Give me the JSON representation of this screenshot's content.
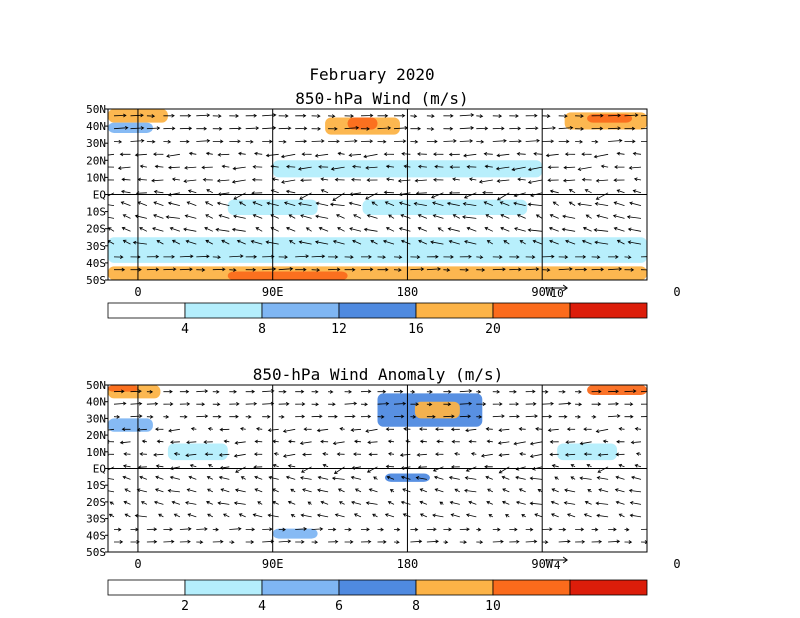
{
  "figure": {
    "title": "February 2020",
    "colors": {
      "white": "#ffffff",
      "c1": "#b4eefc",
      "c2": "#7fb6f3",
      "c3": "#4f8ae0",
      "c4": "#fcb347",
      "c5": "#fb6b1c",
      "c6": "#dc1d0a"
    }
  },
  "chart_data": [
    {
      "type": "heatmap",
      "subtype": "wind vector map with speed shading",
      "title": "850-hPa Wind (m/s)",
      "x_ticks": [
        "0",
        "90E",
        "180",
        "90W",
        "0"
      ],
      "y_ticks": [
        "50N",
        "40N",
        "30N",
        "20N",
        "10N",
        "EQ",
        "10S",
        "20S",
        "30S",
        "40S",
        "50S"
      ],
      "xlim": [
        -20,
        340
      ],
      "ylim": [
        -50,
        50
      ],
      "reference_vector": "10",
      "colorbar": {
        "ticks": [
          "4",
          "8",
          "12",
          "16",
          "20"
        ],
        "bins": [
          0,
          4,
          8,
          12,
          16,
          20,
          24
        ],
        "colors": [
          "#ffffff",
          "#b4eefc",
          "#7fb6f3",
          "#4f8ae0",
          "#fcb347",
          "#fb6b1c",
          "#dc1d0a"
        ]
      },
      "regions": [
        {
          "lon": [
            -20,
            20
          ],
          "lat": [
            42,
            50
          ],
          "value": 18
        },
        {
          "lon": [
            -20,
            10
          ],
          "lat": [
            36,
            42
          ],
          "value": 9
        },
        {
          "lon": [
            125,
            175
          ],
          "lat": [
            35,
            45
          ],
          "value": 17
        },
        {
          "lon": [
            140,
            160
          ],
          "lat": [
            38,
            45
          ],
          "value": 21
        },
        {
          "lon": [
            285,
            340
          ],
          "lat": [
            38,
            48
          ],
          "value": 17
        },
        {
          "lon": [
            300,
            330
          ],
          "lat": [
            42,
            47
          ],
          "value": 21
        },
        {
          "lon": [
            90,
            270
          ],
          "lat": [
            10,
            20
          ],
          "value": 6
        },
        {
          "lon": [
            60,
            120
          ],
          "lat": [
            -12,
            -3
          ],
          "value": 6
        },
        {
          "lon": [
            150,
            260
          ],
          "lat": [
            -12,
            -3
          ],
          "value": 6
        },
        {
          "lon": [
            -20,
            340
          ],
          "lat": [
            -50,
            -42
          ],
          "value": 17
        },
        {
          "lon": [
            60,
            140
          ],
          "lat": [
            -50,
            -45
          ],
          "value": 21
        },
        {
          "lon": [
            -20,
            340
          ],
          "lat": [
            -40,
            -25
          ],
          "value": 6
        }
      ]
    },
    {
      "type": "heatmap",
      "subtype": "wind anomaly vector map with speed shading",
      "title": "850-hPa Wind Anomaly (m/s)",
      "x_ticks": [
        "0",
        "90E",
        "180",
        "90W",
        "0"
      ],
      "y_ticks": [
        "50N",
        "40N",
        "30N",
        "20N",
        "10N",
        "EQ",
        "10S",
        "20S",
        "30S",
        "40S",
        "50S"
      ],
      "xlim": [
        -20,
        340
      ],
      "ylim": [
        -50,
        50
      ],
      "reference_vector": "4",
      "colorbar": {
        "ticks": [
          "2",
          "4",
          "6",
          "8",
          "10"
        ],
        "bins": [
          0,
          2,
          4,
          6,
          8,
          10,
          12
        ],
        "colors": [
          "#ffffff",
          "#b4eefc",
          "#7fb6f3",
          "#4f8ae0",
          "#fcb347",
          "#fb6b1c",
          "#dc1d0a"
        ]
      },
      "regions": [
        {
          "lon": [
            -20,
            15
          ],
          "lat": [
            42,
            50
          ],
          "value": 9
        },
        {
          "lon": [
            -20,
            0
          ],
          "lat": [
            46,
            50
          ],
          "value": 11
        },
        {
          "lon": [
            160,
            230
          ],
          "lat": [
            25,
            45
          ],
          "value": 7
        },
        {
          "lon": [
            185,
            215
          ],
          "lat": [
            30,
            40
          ],
          "value": 9
        },
        {
          "lon": [
            300,
            340
          ],
          "lat": [
            44,
            50
          ],
          "value": 11
        },
        {
          "lon": [
            -20,
            10
          ],
          "lat": [
            22,
            30
          ],
          "value": 5
        },
        {
          "lon": [
            165,
            195
          ],
          "lat": [
            -8,
            -3
          ],
          "value": 7
        },
        {
          "lon": [
            90,
            120
          ],
          "lat": [
            -42,
            -36
          ],
          "value": 5
        },
        {
          "lon": [
            20,
            60
          ],
          "lat": [
            5,
            15
          ],
          "value": 3
        },
        {
          "lon": [
            280,
            320
          ],
          "lat": [
            5,
            15
          ],
          "value": 3
        }
      ]
    }
  ]
}
